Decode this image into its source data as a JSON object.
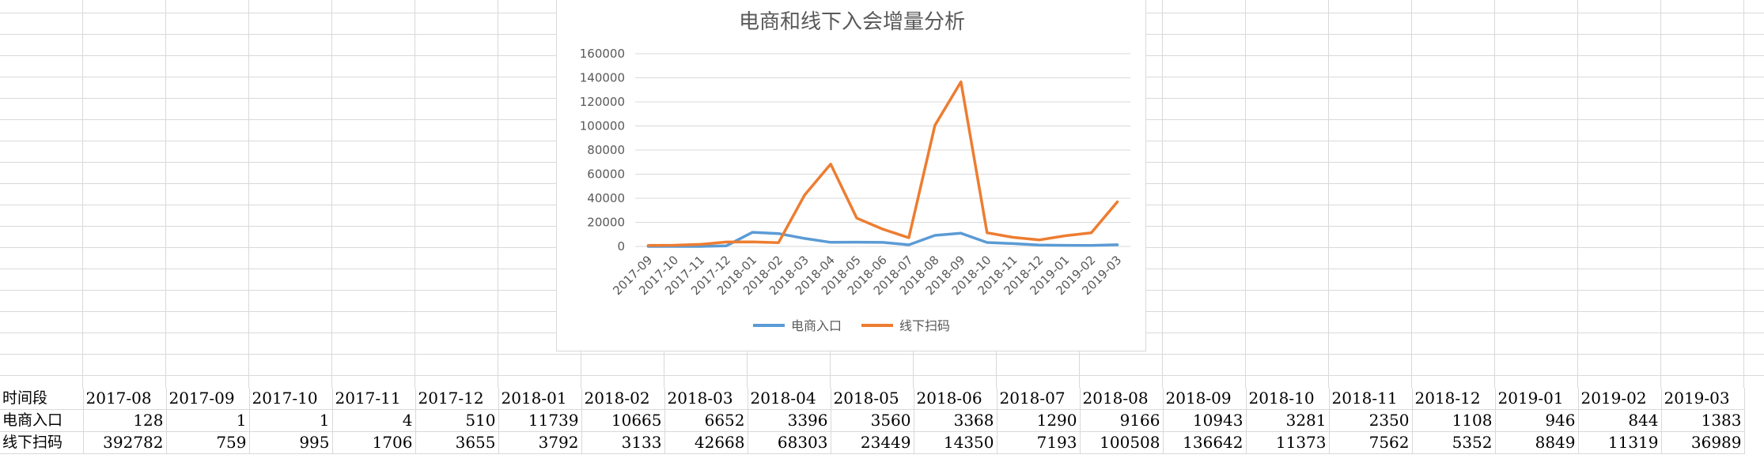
{
  "sheet": {
    "rows": [
      {
        "label": "时间段",
        "values": [
          "2017-08",
          "2017-09",
          "2017-10",
          "2017-11",
          "2017-12",
          "2018-01",
          "2018-02",
          "2018-03",
          "2018-04",
          "2018-05",
          "2018-06",
          "2018-07",
          "2018-08",
          "2018-09",
          "2018-10",
          "2018-11",
          "2018-12",
          "2019-01",
          "2019-02",
          "2019-03"
        ]
      },
      {
        "label": "电商入口",
        "values": [
          "128",
          "1",
          "1",
          "4",
          "510",
          "11739",
          "10665",
          "6652",
          "3396",
          "3560",
          "3368",
          "1290",
          "9166",
          "10943",
          "3281",
          "2350",
          "1108",
          "946",
          "844",
          "1383"
        ]
      },
      {
        "label": "线下扫码",
        "values": [
          "392782",
          "759",
          "995",
          "1706",
          "3655",
          "3792",
          "3133",
          "42668",
          "68303",
          "23449",
          "14350",
          "7193",
          "100508",
          "136642",
          "11373",
          "7562",
          "5352",
          "8849",
          "11319",
          "36989"
        ]
      }
    ]
  },
  "chart_data": {
    "type": "line",
    "title": "电商和线下入会增量分析",
    "categories": [
      "2017-09",
      "2017-10",
      "2017-11",
      "2017-12",
      "2018-01",
      "2018-02",
      "2018-03",
      "2018-04",
      "2018-05",
      "2018-06",
      "2018-07",
      "2018-08",
      "2018-09",
      "2018-10",
      "2018-11",
      "2018-12",
      "2019-01",
      "2019-02",
      "2019-03"
    ],
    "series": [
      {
        "name": "电商入口",
        "color": "#5b9bd5",
        "values": [
          1,
          1,
          4,
          510,
          11739,
          10665,
          6652,
          3396,
          3560,
          3368,
          1290,
          9166,
          10943,
          3281,
          2350,
          1108,
          946,
          844,
          1383
        ]
      },
      {
        "name": "线下扫码",
        "color": "#ed7d31",
        "values": [
          759,
          995,
          1706,
          3655,
          3792,
          3133,
          42668,
          68303,
          23449,
          14350,
          7193,
          100508,
          136642,
          11373,
          7562,
          5352,
          8849,
          11319,
          36989
        ]
      }
    ],
    "ylim": [
      0,
      160000
    ],
    "yticks": [
      "0",
      "20000",
      "40000",
      "60000",
      "80000",
      "100000",
      "120000",
      "140000",
      "160000"
    ],
    "grid": true,
    "legend_position": "bottom",
    "xlabel": "",
    "ylabel": ""
  }
}
